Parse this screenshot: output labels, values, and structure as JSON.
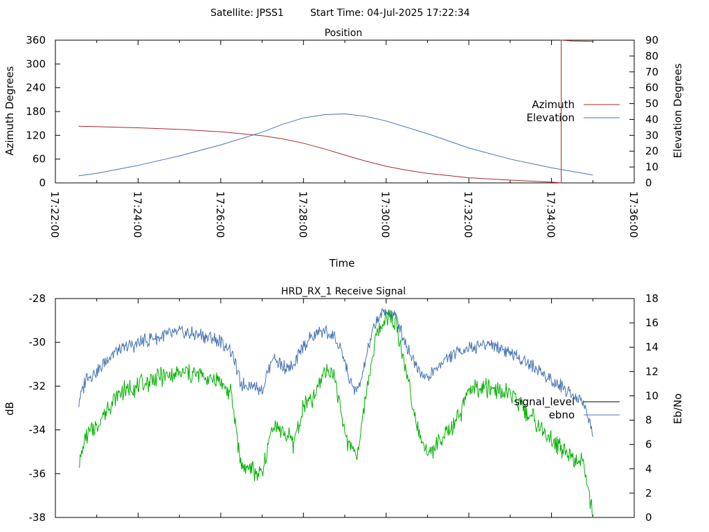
{
  "header": {
    "satellite_label": "Satellite: JPSS1",
    "start_time_label": "Start Time: 04-Jul-2025 17:22:34"
  },
  "colors": {
    "azimuth": "#a52a2a",
    "elevation": "#4573b4",
    "signal_level": "#00b000",
    "ebno": "#4573b4",
    "signal_level_legend": "#000000",
    "axis": "#000000"
  },
  "chart_data": [
    {
      "type": "line",
      "title": "Position",
      "xlabel": "Time",
      "ylabel": "Azimuth Degrees",
      "y2label": "Elevation Degrees",
      "xlim": [
        "17:22:00",
        "17:36:00"
      ],
      "ylim": [
        0,
        360
      ],
      "y2lim": [
        0,
        90
      ],
      "xticks": [
        "17:22:00",
        "17:24:00",
        "17:26:00",
        "17:28:00",
        "17:30:00",
        "17:32:00",
        "17:34:00",
        "17:36:00"
      ],
      "yticks": [
        "0",
        "60",
        "120",
        "180",
        "240",
        "300",
        "360"
      ],
      "y2ticks": [
        "0",
        "10",
        "20",
        "30",
        "40",
        "50",
        "60",
        "70",
        "80",
        "90"
      ],
      "legend_position": "right",
      "series": [
        {
          "name": "Azimuth",
          "axis": "left",
          "x": [
            "17:22:34",
            "17:24:00",
            "17:25:00",
            "17:26:00",
            "17:27:00",
            "17:27:30",
            "17:28:00",
            "17:28:30",
            "17:29:00",
            "17:29:30",
            "17:30:00",
            "17:30:30",
            "17:31:00",
            "17:32:00",
            "17:33:00",
            "17:34:00",
            "17:34:14"
          ],
          "values": [
            143,
            139,
            135,
            129,
            119,
            111,
            100,
            86,
            70,
            55,
            42,
            32,
            24,
            13,
            7,
            2,
            0
          ]
        },
        {
          "name": "Azimuth",
          "axis": "left",
          "x": [
            "17:34:14",
            "17:34:14",
            "17:34:30",
            "17:35:00"
          ],
          "values": [
            0,
            360,
            358,
            357
          ]
        },
        {
          "name": "Elevation",
          "axis": "right",
          "x": [
            "17:22:34",
            "17:23:00",
            "17:24:00",
            "17:25:00",
            "17:26:00",
            "17:27:00",
            "17:27:30",
            "17:28:00",
            "17:28:30",
            "17:29:00",
            "17:29:30",
            "17:30:00",
            "17:31:00",
            "17:32:00",
            "17:33:00",
            "17:34:00",
            "17:35:00"
          ],
          "values": [
            4.5,
            6,
            11,
            17,
            24,
            32,
            37,
            41,
            43,
            43.5,
            42,
            39,
            31,
            22,
            15,
            9.5,
            5
          ]
        }
      ]
    },
    {
      "type": "line",
      "title": "HRD_RX_1 Receive Signal",
      "ylabel": "dB",
      "y2label": "Eb/No",
      "xlim": [
        "17:22:00",
        "17:36:00"
      ],
      "ylim": [
        -38,
        -28
      ],
      "y2lim": [
        0,
        18
      ],
      "yticks": [
        "-28",
        "-30",
        "-32",
        "-34",
        "-36",
        "-38"
      ],
      "y2ticks": [
        "0",
        "2",
        "4",
        "6",
        "8",
        "10",
        "12",
        "14",
        "16",
        "18"
      ],
      "legend_position": "right",
      "series": [
        {
          "name": "signal_level",
          "axis": "left",
          "x": [
            "17:22:34",
            "17:22:45",
            "17:23:00",
            "17:23:20",
            "17:23:40",
            "17:24:00",
            "17:24:30",
            "17:25:00",
            "17:25:30",
            "17:26:00",
            "17:26:15",
            "17:26:30",
            "17:26:45",
            "17:27:00",
            "17:27:15",
            "17:27:30",
            "17:27:45",
            "17:28:00",
            "17:28:15",
            "17:28:30",
            "17:28:45",
            "17:29:00",
            "17:29:10",
            "17:29:20",
            "17:29:30",
            "17:29:45",
            "17:30:00",
            "17:30:15",
            "17:30:30",
            "17:30:45",
            "17:31:00",
            "17:31:15",
            "17:31:30",
            "17:31:45",
            "17:32:00",
            "17:32:30",
            "17:33:00",
            "17:33:30",
            "17:34:00",
            "17:34:30",
            "17:34:45",
            "17:35:00"
          ],
          "values": [
            -35.5,
            -34.2,
            -33.8,
            -32.8,
            -32.2,
            -32.0,
            -31.6,
            -31.4,
            -31.5,
            -31.8,
            -32.4,
            -35.6,
            -35.8,
            -36.1,
            -33.8,
            -34.0,
            -34.6,
            -33.0,
            -32.6,
            -31.2,
            -31.5,
            -34.2,
            -34.9,
            -35.0,
            -32.5,
            -29.8,
            -28.7,
            -29.2,
            -31.5,
            -33.8,
            -35.2,
            -34.6,
            -34.2,
            -33.5,
            -32.2,
            -32.1,
            -32.4,
            -33.4,
            -34.5,
            -35.2,
            -35.4,
            -37.8
          ]
        },
        {
          "name": "ebno",
          "axis": "right",
          "x": [
            "17:22:34",
            "17:22:45",
            "17:23:00",
            "17:23:20",
            "17:23:40",
            "17:24:00",
            "17:24:30",
            "17:25:00",
            "17:25:30",
            "17:26:00",
            "17:26:15",
            "17:26:30",
            "17:26:45",
            "17:27:00",
            "17:27:15",
            "17:27:30",
            "17:27:45",
            "17:28:00",
            "17:28:15",
            "17:28:30",
            "17:28:45",
            "17:29:00",
            "17:29:10",
            "17:29:20",
            "17:29:30",
            "17:29:45",
            "17:30:00",
            "17:30:15",
            "17:30:30",
            "17:30:45",
            "17:31:00",
            "17:31:15",
            "17:31:30",
            "17:31:45",
            "17:32:00",
            "17:32:30",
            "17:33:00",
            "17:33:30",
            "17:34:00",
            "17:34:30",
            "17:34:45",
            "17:35:00"
          ],
          "values": [
            9.5,
            11.5,
            12.0,
            13.3,
            14.0,
            14.3,
            14.9,
            15.2,
            15.0,
            14.5,
            13.7,
            10.9,
            10.9,
            10.5,
            13.2,
            12.4,
            12.3,
            14.2,
            15.0,
            15.3,
            14.8,
            12.8,
            10.7,
            10.4,
            13.0,
            16.2,
            17.0,
            16.4,
            14.0,
            12.5,
            11.3,
            12.5,
            13.1,
            13.7,
            14.0,
            14.3,
            13.6,
            12.5,
            11.3,
            10.2,
            9.6,
            7.0
          ]
        }
      ]
    }
  ]
}
